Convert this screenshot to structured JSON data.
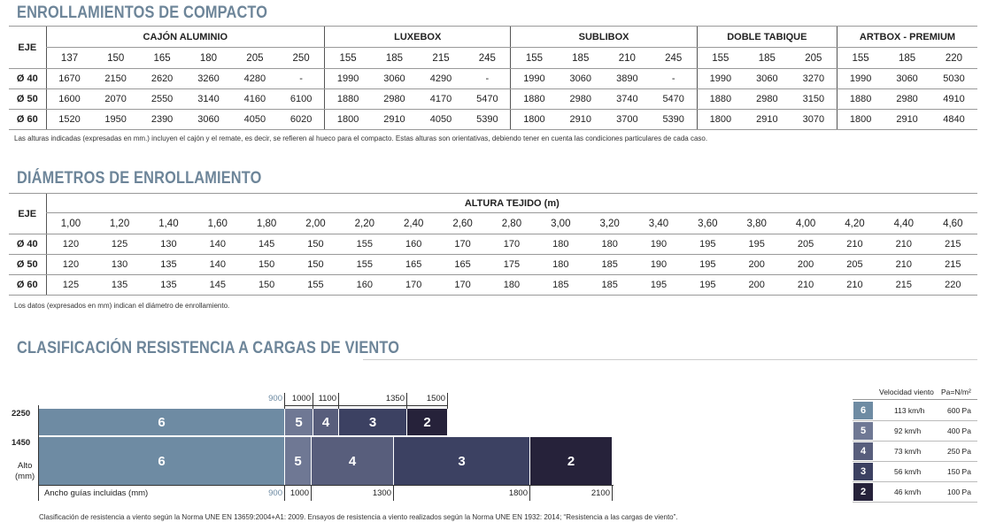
{
  "section1": {
    "title": "ENROLLAMIENTOS DE COMPACTO",
    "eje_label": "EJE",
    "groups": [
      {
        "name": "CAJÓN ALUMINIO",
        "cols": [
          "137",
          "150",
          "165",
          "180",
          "205",
          "250"
        ]
      },
      {
        "name": "LUXEBOX",
        "cols": [
          "155",
          "185",
          "215",
          "245"
        ]
      },
      {
        "name": "SUBLIBOX",
        "cols": [
          "155",
          "185",
          "210",
          "245"
        ]
      },
      {
        "name": "DOBLE TABIQUE",
        "cols": [
          "155",
          "185",
          "205"
        ]
      },
      {
        "name": "ARTBOX - PREMIUM",
        "cols": [
          "155",
          "185",
          "220"
        ]
      }
    ],
    "rows": [
      {
        "eje": "Ø 40",
        "values": [
          "1670",
          "2150",
          "2620",
          "3260",
          "4280",
          "-",
          "1990",
          "3060",
          "4290",
          "-",
          "1990",
          "3060",
          "3890",
          "-",
          "1990",
          "3060",
          "3270",
          "1990",
          "3060",
          "5030"
        ]
      },
      {
        "eje": "Ø 50",
        "values": [
          "1600",
          "2070",
          "2550",
          "3140",
          "4160",
          "6100",
          "1880",
          "2980",
          "4170",
          "5470",
          "1880",
          "2980",
          "3740",
          "5470",
          "1880",
          "2980",
          "3150",
          "1880",
          "2980",
          "4910"
        ]
      },
      {
        "eje": "Ø 60",
        "values": [
          "1520",
          "1950",
          "2390",
          "3060",
          "4050",
          "6020",
          "1800",
          "2910",
          "4050",
          "5390",
          "1800",
          "2910",
          "3700",
          "5390",
          "1800",
          "2910",
          "3070",
          "1800",
          "2910",
          "4840"
        ]
      }
    ],
    "note": "Las alturas indicadas (expresadas en mm.) incluyen el cajón y el remate, es decir, se refieren al hueco para el compacto. Estas alturas son orientativas, debiendo tener en cuenta las condiciones particulares de cada caso."
  },
  "section2": {
    "title": "DIÁMETROS DE ENROLLAMIENTO",
    "eje_label": "EJE",
    "header": "ALTURA TEJIDO (m)",
    "cols": [
      "1,00",
      "1,20",
      "1,40",
      "1,60",
      "1,80",
      "2,00",
      "2,20",
      "2,40",
      "2,60",
      "2,80",
      "3,00",
      "3,20",
      "3,40",
      "3,60",
      "3,80",
      "4,00",
      "4,20",
      "4,40",
      "4,60"
    ],
    "rows": [
      {
        "eje": "Ø 40",
        "values": [
          "120",
          "125",
          "130",
          "140",
          "145",
          "150",
          "155",
          "160",
          "170",
          "170",
          "180",
          "180",
          "190",
          "195",
          "195",
          "205",
          "210",
          "210",
          "215"
        ]
      },
      {
        "eje": "Ø 50",
        "values": [
          "120",
          "130",
          "135",
          "140",
          "150",
          "150",
          "155",
          "165",
          "165",
          "175",
          "180",
          "185",
          "190",
          "195",
          "200",
          "200",
          "205",
          "210",
          "215"
        ]
      },
      {
        "eje": "Ø 60",
        "values": [
          "125",
          "135",
          "135",
          "145",
          "150",
          "155",
          "160",
          "170",
          "170",
          "180",
          "185",
          "185",
          "195",
          "195",
          "200",
          "210",
          "210",
          "215",
          "220"
        ]
      }
    ],
    "note": "Los datos (expresados en mm) indican el diámetro de enrollamiento."
  },
  "section3": {
    "title": "CLASIFICACIÓN RESISTENCIA A CARGAS DE VIENTO",
    "alto_label_1": "Alto",
    "alto_label_2": "(mm)",
    "ancho_label": "Ancho guías incluidas (mm)",
    "note": "Clasificación de resistencia a viento según la Norma UNE EN 13659:2004+A1: 2009. Ensayos de resistencia a viento realizados según la Norma UNE EN 1932: 2014; “Resistencia a las cargas de viento”.",
    "top_ticks": [
      "900",
      "1000",
      "1100",
      "1350",
      "1500"
    ],
    "bottom_ticks": [
      "900",
      "1000",
      "1300",
      "1800",
      "2100"
    ],
    "heights": [
      "2250",
      "1450"
    ],
    "row1": [
      {
        "cls": "6",
        "color": "#6e8ba3"
      },
      {
        "cls": "5",
        "color": "#6f7894"
      },
      {
        "cls": "4",
        "color": "#585e7c"
      },
      {
        "cls": "3",
        "color": "#3c4162"
      },
      {
        "cls": "2",
        "color": "#26223a"
      }
    ],
    "row2": [
      {
        "cls": "6",
        "color": "#6e8ba3"
      },
      {
        "cls": "5",
        "color": "#6f7894"
      },
      {
        "cls": "4",
        "color": "#585e7c"
      },
      {
        "cls": "3",
        "color": "#3c4162"
      },
      {
        "cls": "2",
        "color": "#26223a"
      }
    ],
    "legend": {
      "col1": "Velocidad viento",
      "col2": "Pa=N/m²",
      "rows": [
        {
          "cls": "6",
          "speed": "113 km/h",
          "pa": "600 Pa",
          "color": "#6e8ba3"
        },
        {
          "cls": "5",
          "speed": "92 km/h",
          "pa": "400 Pa",
          "color": "#6f7894"
        },
        {
          "cls": "4",
          "speed": "73 km/h",
          "pa": "250 Pa",
          "color": "#585e7c"
        },
        {
          "cls": "3",
          "speed": "56 km/h",
          "pa": "150 Pa",
          "color": "#3c4162"
        },
        {
          "cls": "2",
          "speed": "46 km/h",
          "pa": "100 Pa",
          "color": "#26223a"
        }
      ]
    }
  }
}
